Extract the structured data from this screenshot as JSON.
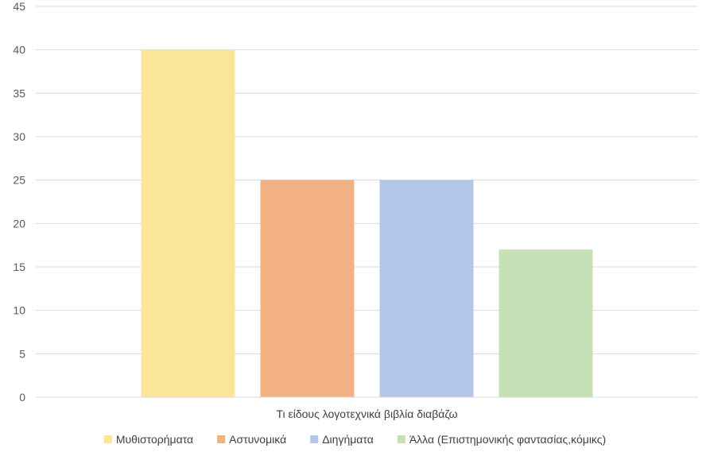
{
  "chart_data": {
    "type": "bar",
    "title": "",
    "xlabel": "",
    "ylabel": "",
    "categories": [
      "Τι είδους λογοτεχνικά βιβλία διαβάζω"
    ],
    "series": [
      {
        "name": "Μυθιστορήματα",
        "values": [
          40
        ],
        "color": "#FBE599"
      },
      {
        "name": "Αστυνομικά",
        "values": [
          25
        ],
        "color": "#F2B183"
      },
      {
        "name": "Διηγήματα",
        "values": [
          25
        ],
        "color": "#B4C6E7"
      },
      {
        "name": "Άλλα (Επιστημονικής φαντασίας,κόμικς)",
        "values": [
          17
        ],
        "color": "#C5E0B4"
      }
    ],
    "ylim": [
      0,
      45
    ],
    "yticks": [
      0,
      5,
      10,
      15,
      20,
      25,
      30,
      35,
      40,
      45
    ],
    "grid": true,
    "legend": "bottom"
  }
}
